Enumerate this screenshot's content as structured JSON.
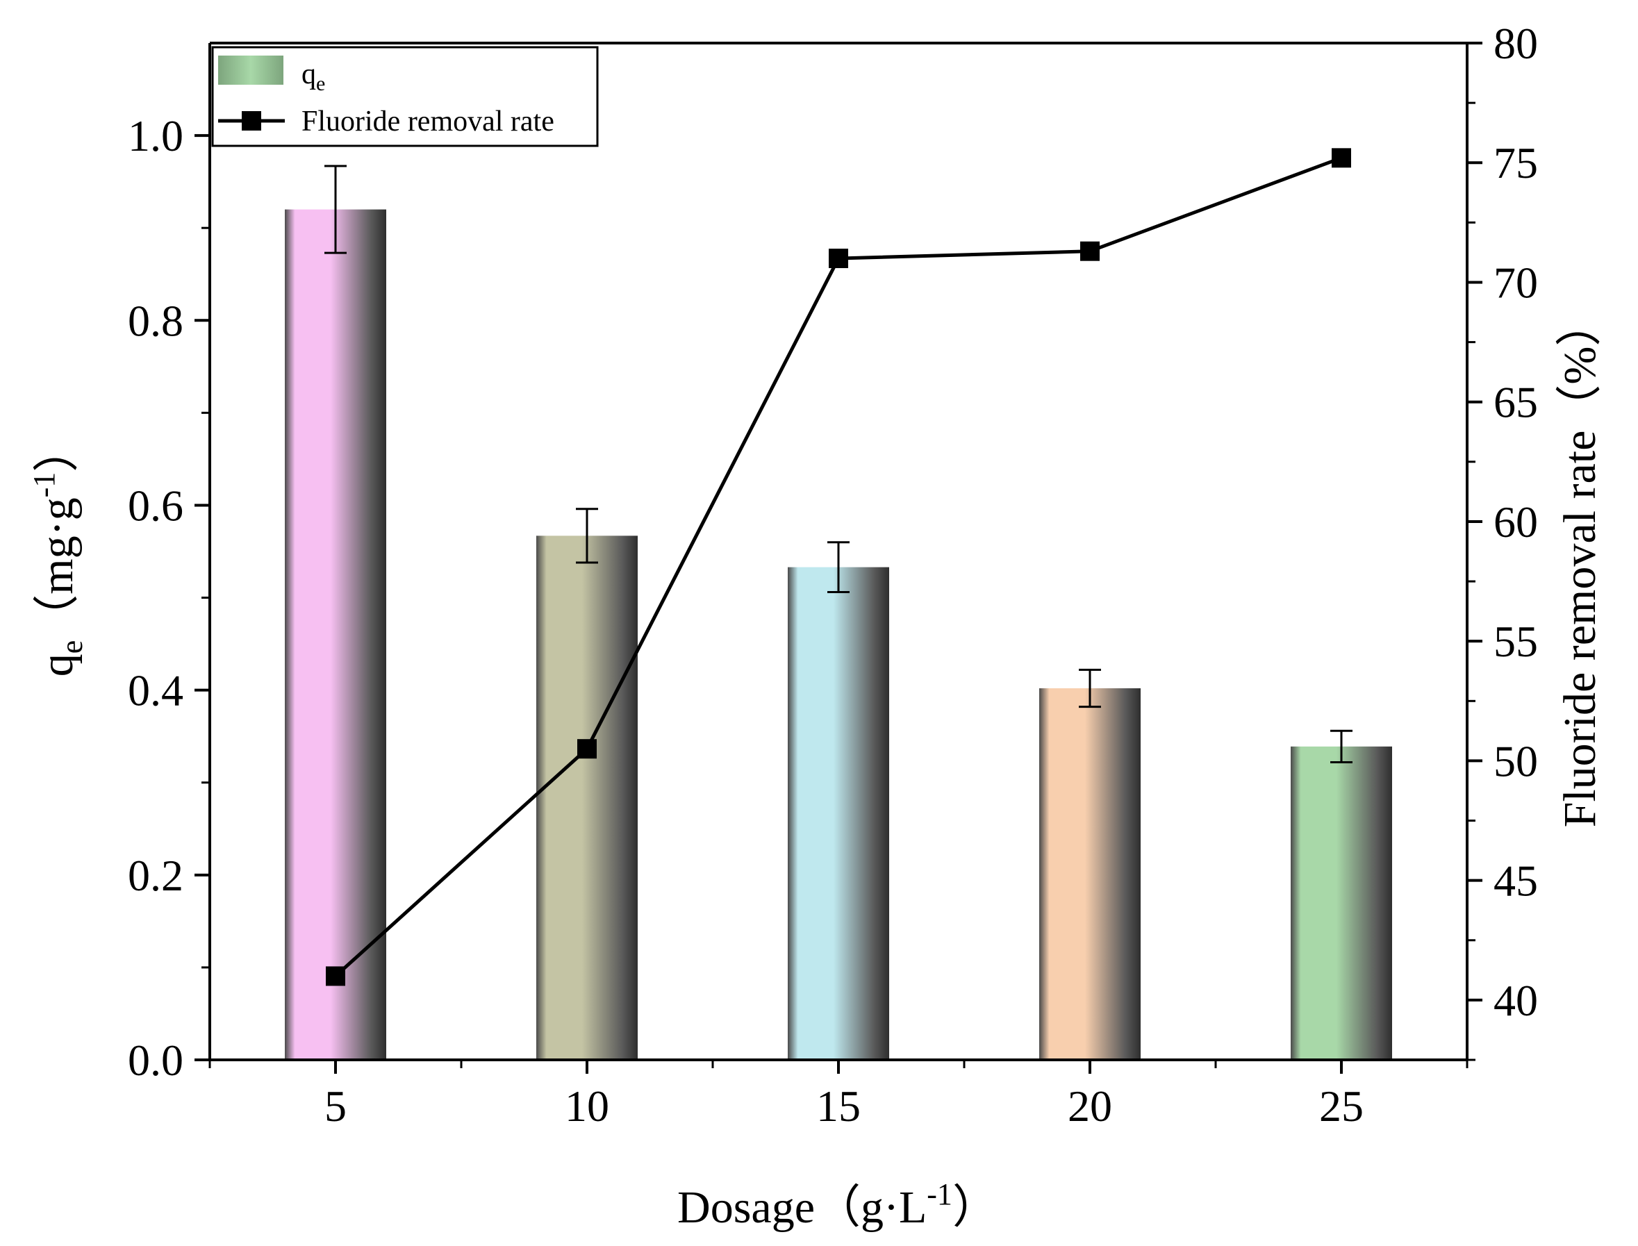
{
  "chart_data": {
    "type": "bar+line",
    "x_label": "Dosage（g·L⁻¹）",
    "categories": [
      "5",
      "10",
      "15",
      "20",
      "25"
    ],
    "left_axis": {
      "label": "qe（mg·g⁻¹）",
      "label_main": "q",
      "label_sub": "e",
      "label_rest": "（mg·g",
      "label_sup": "-1",
      "label_close": "）",
      "ylim": [
        0,
        1.1
      ],
      "ticks": [
        "0.0",
        "0.2",
        "0.4",
        "0.6",
        "0.8",
        "1.0"
      ]
    },
    "right_axis": {
      "label": "Fluoride removal rate（%）",
      "ylim": [
        37.5,
        80
      ],
      "ticks": [
        "40",
        "45",
        "50",
        "55",
        "60",
        "65",
        "70",
        "75",
        "80"
      ]
    },
    "x_axis": {
      "label_main": "Dosage（g·L",
      "label_sup": "-1",
      "label_close": "）"
    },
    "series": [
      {
        "name": "qe",
        "legend_main": "q",
        "legend_sub": "e",
        "kind": "bar",
        "axis": "left",
        "values": [
          0.92,
          0.567,
          0.533,
          0.402,
          0.339
        ],
        "errors": [
          0.047,
          0.029,
          0.027,
          0.02,
          0.017
        ],
        "colors": [
          "#f7c0f2",
          "#c4c4a4",
          "#bfe8ee",
          "#f8cfae",
          "#a8d8a8"
        ]
      },
      {
        "name": "Fluoride removal rate",
        "kind": "line",
        "axis": "right",
        "values": [
          41.0,
          50.5,
          71.0,
          71.3,
          75.2
        ],
        "color": "#000000"
      }
    ],
    "legend_position": "top-left"
  }
}
